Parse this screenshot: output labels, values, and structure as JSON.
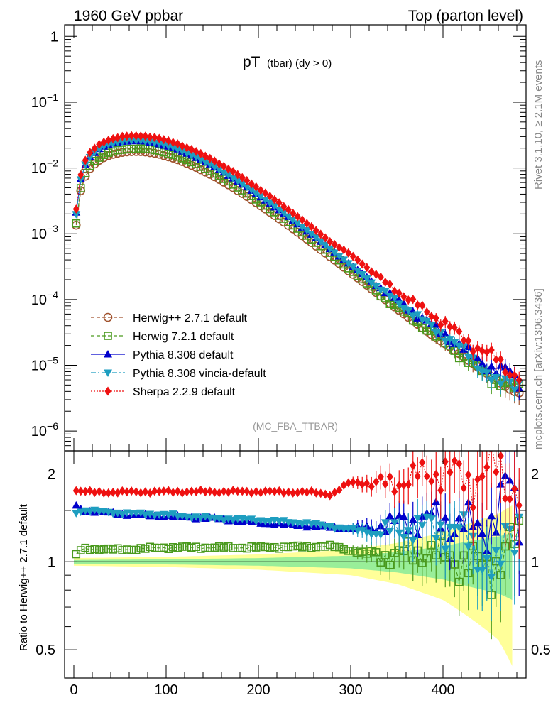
{
  "header": {
    "left_title": "1960 GeV ppbar",
    "right_title": "Top (parton level)",
    "obs_main": "pT",
    "obs_sub": "(tbar) (dy > 0)",
    "analysis": "(MC_FBA_TTBAR)",
    "side_rivet": "Rivet 3.1.10, ≥ 2.1M events",
    "side_mcplots": "mcplots.cern.ch [arXiv:1306.3436]",
    "ratio_ylabel": "Ratio to Herwig++ 2.7.1 default"
  },
  "legend": [
    {
      "label": "Herwig++ 2.7.1 default",
      "color": "#a0522d",
      "marker": "circle-open",
      "dash": "dashed"
    },
    {
      "label": "Herwig 7.2.1 default",
      "color": "#4a9a1e",
      "marker": "square-open",
      "dash": "dashed"
    },
    {
      "label": "Pythia 8.308 default",
      "color": "#0000cc",
      "marker": "triangle-up",
      "dash": "solid"
    },
    {
      "label": "Pythia 8.308 vincia-default",
      "color": "#1e9ec0",
      "marker": "triangle-down",
      "dash": "dashdot"
    },
    {
      "label": "Sherpa 2.2.9 default",
      "color": "#ee1111",
      "marker": "diamond",
      "dash": "dotted"
    }
  ],
  "chart_data": [
    {
      "type": "scatter",
      "panel": "main",
      "ylog": true,
      "xlim": [
        -10,
        490
      ],
      "ylim": [
        5e-07,
        1.5
      ],
      "y_ticks": [
        {
          "v": 1,
          "label": "1"
        },
        {
          "v": 0.1,
          "base": "10",
          "exp": "−1"
        },
        {
          "v": 0.01,
          "base": "10",
          "exp": "−2"
        },
        {
          "v": 0.001,
          "base": "10",
          "exp": "−3"
        },
        {
          "v": 0.0001,
          "base": "10",
          "exp": "−4"
        },
        {
          "v": 1e-05,
          "base": "10",
          "exp": "−5"
        },
        {
          "v": 1e-06,
          "base": "10",
          "exp": "−6"
        }
      ],
      "anchors": {
        "x": [
          2.5,
          7.5,
          12.5,
          17.5,
          25,
          35,
          45,
          55,
          65,
          75,
          90,
          110,
          130,
          150,
          170,
          190,
          210,
          230,
          250,
          270,
          290,
          310,
          330,
          350,
          370,
          390,
          410,
          430,
          450,
          470,
          480
        ],
        "y": [
          0.00135,
          0.0045,
          0.0075,
          0.0098,
          0.0125,
          0.015,
          0.0165,
          0.0175,
          0.0178,
          0.0177,
          0.0165,
          0.0138,
          0.0106,
          0.0077,
          0.0053,
          0.0035,
          0.00225,
          0.00142,
          0.00088,
          0.00054,
          0.00033,
          0.0002,
          0.00012,
          7.25e-05,
          4.45e-05,
          2.75e-05,
          1.8e-05,
          1.12e-05,
          7.1e-06,
          4.5e-06,
          3.8e-06
        ]
      },
      "series": [
        {
          "name": "Herwig++ 2.7.1 default",
          "ratio_anchors": {
            "x": [
              0,
              480
            ],
            "y": [
              1.0,
              1.0
            ]
          }
        },
        {
          "name": "Herwig 7.2.1 default",
          "ratio_anchors": {
            "x": [
              0,
              10,
              50,
              100,
              200,
              280,
              320,
              350,
              380,
              400,
              420,
              440,
              460,
              470,
              480
            ],
            "y": [
              1.04,
              1.11,
              1.1,
              1.12,
              1.12,
              1.13,
              1.06,
              1.05,
              1.1,
              1.05,
              1.02,
              0.95,
              1.02,
              1.1,
              1.15
            ]
          }
        },
        {
          "name": "Pythia 8.308 default",
          "ratio_anchors": {
            "x": [
              0,
              10,
              60,
              150,
              200,
              250,
              300,
              330,
              360,
              390,
              420,
              440,
              460,
              470,
              480
            ],
            "y": [
              1.57,
              1.5,
              1.45,
              1.41,
              1.36,
              1.33,
              1.3,
              1.33,
              1.38,
              1.42,
              1.34,
              1.3,
              1.45,
              1.9,
              1.55
            ]
          }
        },
        {
          "name": "Pythia 8.308 vincia-default",
          "ratio_anchors": {
            "x": [
              0,
              10,
              50,
              100,
              150,
              200,
              250,
              300,
              330,
              360,
              400,
              430,
              460,
              470,
              480
            ],
            "y": [
              1.47,
              1.5,
              1.47,
              1.45,
              1.41,
              1.39,
              1.36,
              1.29,
              1.26,
              1.3,
              1.33,
              1.2,
              0.85,
              1.35,
              1.4
            ]
          }
        },
        {
          "name": "Sherpa 2.2.9 default",
          "ratio_anchors": {
            "x": [
              0,
              20,
              100,
              200,
              260,
              280,
              300,
              330,
              360,
              390,
              420,
              440,
              460,
              470,
              480
            ],
            "y": [
              1.76,
              1.73,
              1.74,
              1.74,
              1.73,
              1.7,
              1.88,
              1.84,
              1.9,
              2.05,
              1.98,
              1.9,
              2.2,
              1.95,
              1.7
            ]
          }
        }
      ]
    },
    {
      "type": "scatter",
      "panel": "ratio",
      "ylog": true,
      "xlim": [
        -10,
        490
      ],
      "ylim": [
        0.4,
        2.4
      ],
      "x_ticks": [
        0,
        100,
        200,
        300,
        400
      ],
      "y_ticks": [
        {
          "v": 2,
          "label": "2"
        },
        {
          "v": 1,
          "label": "1"
        },
        {
          "v": 0.5,
          "label": "0.5"
        }
      ],
      "reference_line": 1.0,
      "band_inner": {
        "x": [
          0,
          100,
          200,
          300,
          350,
          400,
          430,
          460,
          475
        ],
        "half": [
          0.015,
          0.02,
          0.03,
          0.05,
          0.08,
          0.13,
          0.18,
          0.22,
          0.26
        ]
      },
      "band_outer": {
        "x": [
          0,
          100,
          200,
          300,
          350,
          400,
          430,
          460,
          475
        ],
        "half": [
          0.03,
          0.04,
          0.06,
          0.1,
          0.16,
          0.26,
          0.36,
          0.46,
          0.56
        ]
      }
    }
  ]
}
